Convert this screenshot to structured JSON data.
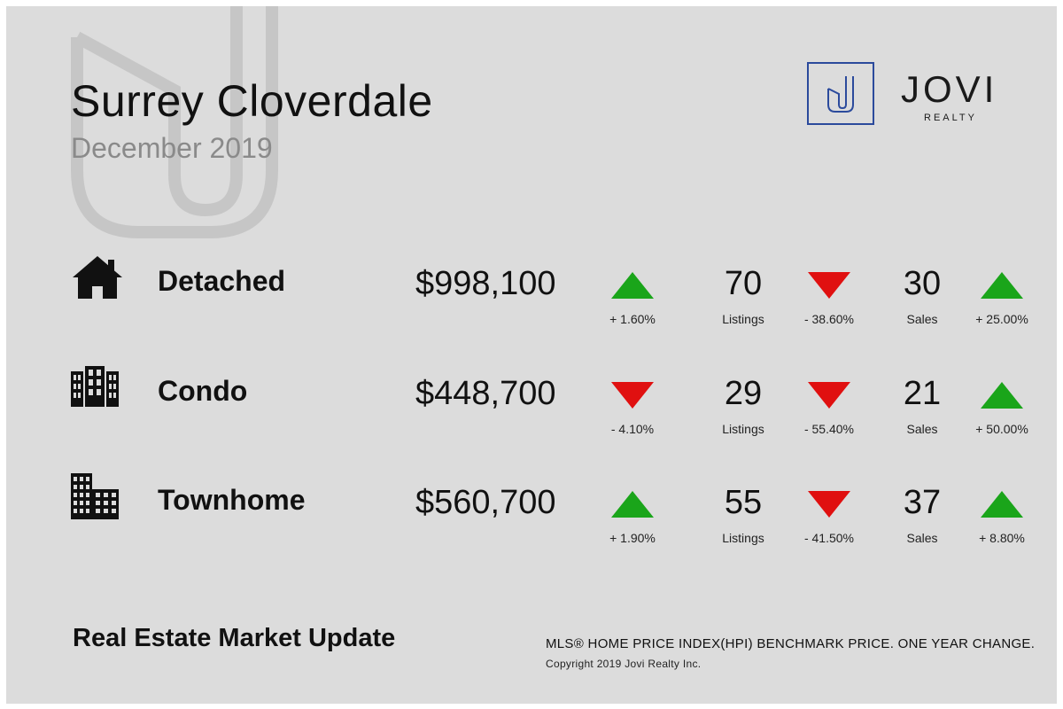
{
  "header": {
    "title": "Surrey Cloverdale",
    "subtitle": "December 2019"
  },
  "logo": {
    "mark": "J",
    "word": "JOVI",
    "sub": "REALTY",
    "color": "#2b4a9c"
  },
  "rows": [
    {
      "icon": "house-icon",
      "name": "Detached",
      "price": "$998,100",
      "price_change": "+ 1.60%",
      "price_trend": "up",
      "listings": "70",
      "listings_label": "Listings",
      "listings_change": "- 38.60%",
      "listings_trend": "down",
      "sales": "30",
      "sales_label": "Sales",
      "sales_change": "+ 25.00%",
      "sales_trend": "up"
    },
    {
      "icon": "condo-building-icon",
      "name": "Condo",
      "price": "$448,700",
      "price_change": "- 4.10%",
      "price_trend": "down",
      "listings": "29",
      "listings_label": "Listings",
      "listings_change": "- 55.40%",
      "listings_trend": "down",
      "sales": "21",
      "sales_label": "Sales",
      "sales_change": "+ 50.00%",
      "sales_trend": "up"
    },
    {
      "icon": "townhome-building-icon",
      "name": "Townhome",
      "price": "$560,700",
      "price_change": "+ 1.90%",
      "price_trend": "up",
      "listings": "55",
      "listings_label": "Listings",
      "listings_change": "- 41.50%",
      "listings_trend": "down",
      "sales": "37",
      "sales_label": "Sales",
      "sales_change": "+ 8.80%",
      "sales_trend": "up"
    }
  ],
  "footer": {
    "title": "Real Estate Market Update",
    "note": "MLS® HOME PRICE INDEX(HPI) BENCHMARK PRICE. ONE YEAR CHANGE.",
    "copyright": "Copyright 2019 Jovi Realty Inc."
  },
  "colors": {
    "background": "#dcdcdc",
    "up": "#1aa51a",
    "down": "#e01010",
    "watermark": "#c6c6c6"
  }
}
